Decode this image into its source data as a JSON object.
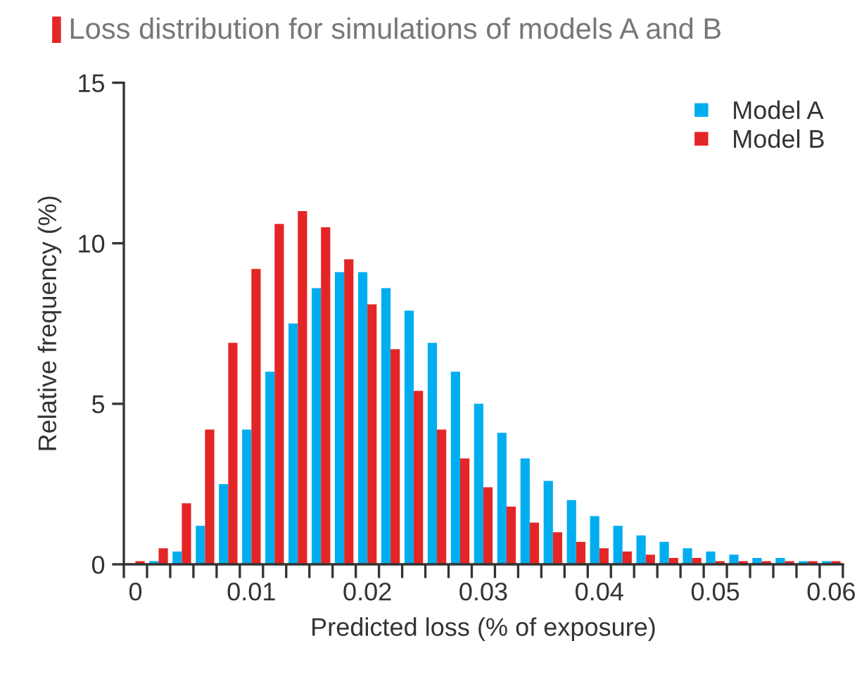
{
  "chart_data": {
    "type": "bar",
    "title": "Loss distribution for simulations of models A and B",
    "xlabel": "Predicted loss (% of exposure)",
    "ylabel": "Relative frequency (%)",
    "x": [
      0,
      0.002,
      0.004,
      0.006,
      0.008,
      0.01,
      0.012,
      0.014,
      0.016,
      0.018,
      0.02,
      0.022,
      0.024,
      0.026,
      0.028,
      0.03,
      0.032,
      0.034,
      0.036,
      0.038,
      0.04,
      0.042,
      0.044,
      0.046,
      0.048,
      0.05,
      0.052,
      0.054,
      0.056,
      0.058,
      0.06
    ],
    "series": [
      {
        "name": "Model A",
        "color": "#00aeef",
        "values": [
          0,
          0.1,
          0.4,
          1.2,
          2.5,
          4.2,
          6.0,
          7.5,
          8.6,
          9.1,
          9.1,
          8.6,
          7.9,
          6.9,
          6.0,
          5.0,
          4.1,
          3.3,
          2.6,
          2.0,
          1.5,
          1.2,
          0.9,
          0.7,
          0.5,
          0.4,
          0.3,
          0.2,
          0.2,
          0.1,
          0.1
        ]
      },
      {
        "name": "Model B",
        "color": "#e42526",
        "values": [
          0.1,
          0.5,
          1.9,
          4.2,
          6.9,
          9.2,
          10.6,
          11.0,
          10.5,
          9.5,
          8.1,
          6.7,
          5.4,
          4.2,
          3.3,
          2.4,
          1.8,
          1.3,
          1.0,
          0.7,
          0.5,
          0.4,
          0.3,
          0.2,
          0.2,
          0.1,
          0.1,
          0.1,
          0.1,
          0.1,
          0.1
        ]
      }
    ],
    "xlim": [
      -0.001,
      0.061
    ],
    "xticks": [
      0,
      0.01,
      0.02,
      0.03,
      0.04,
      0.05,
      0.06,
      {
        "value": -0.001,
        "label": null
      },
      {
        "value": 0.001,
        "label": null
      },
      {
        "value": 0.003,
        "label": null
      },
      {
        "value": 0.005,
        "label": null
      },
      {
        "value": 0.007,
        "label": null
      },
      {
        "value": 0.009,
        "label": null
      },
      {
        "value": 0.011,
        "label": null
      },
      {
        "value": 0.013,
        "label": null
      },
      {
        "value": 0.015,
        "label": null
      },
      {
        "value": 0.017,
        "label": null
      },
      {
        "value": 0.019,
        "label": null
      },
      {
        "value": 0.021,
        "label": null
      },
      {
        "value": 0.023,
        "label": null
      },
      {
        "value": 0.025,
        "label": null
      },
      {
        "value": 0.027,
        "label": null
      },
      {
        "value": 0.029,
        "label": null
      },
      {
        "value": 0.031,
        "label": null
      },
      {
        "value": 0.033,
        "label": null
      },
      {
        "value": 0.035,
        "label": null
      },
      {
        "value": 0.037,
        "label": null
      },
      {
        "value": 0.039,
        "label": null
      },
      {
        "value": 0.041,
        "label": null
      },
      {
        "value": 0.043,
        "label": null
      },
      {
        "value": 0.045,
        "label": null
      },
      {
        "value": 0.047,
        "label": null
      },
      {
        "value": 0.049,
        "label": null
      },
      {
        "value": 0.051,
        "label": null
      },
      {
        "value": 0.053,
        "label": null
      },
      {
        "value": 0.055,
        "label": null
      },
      {
        "value": 0.057,
        "label": null
      },
      {
        "value": 0.059,
        "label": null
      },
      {
        "value": 0.061,
        "label": null
      }
    ],
    "ylim": [
      0,
      15
    ],
    "yticks": [
      0,
      5,
      10,
      15
    ],
    "grid": false,
    "legend": "top right"
  }
}
